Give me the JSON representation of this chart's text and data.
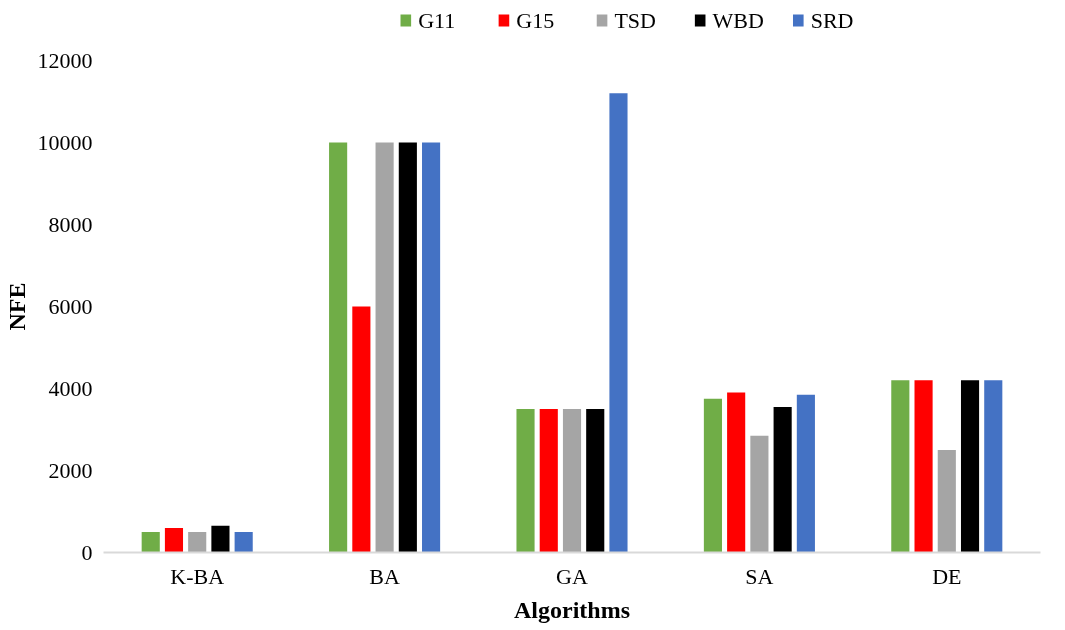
{
  "chart_data": {
    "type": "bar",
    "xlabel": "Algorithms",
    "ylabel": "NFE",
    "categories": [
      "K-BA",
      "BA",
      "GA",
      "SA",
      "DE"
    ],
    "series": [
      {
        "name": "G11",
        "color": "#70ad47",
        "values": [
          500,
          10000,
          3500,
          3750,
          4200
        ]
      },
      {
        "name": "G15",
        "color": "#ff0000",
        "values": [
          600,
          6000,
          3500,
          3900,
          4200
        ]
      },
      {
        "name": "TSD",
        "color": "#a5a5a5",
        "values": [
          500,
          10000,
          3500,
          2850,
          2500
        ]
      },
      {
        "name": "WBD",
        "color": "#000000",
        "values": [
          650,
          10000,
          3500,
          3550,
          4200
        ]
      },
      {
        "name": "SRD",
        "color": "#4472c4",
        "values": [
          500,
          10000,
          11200,
          3850,
          4200
        ]
      }
    ],
    "ylim": [
      0,
      12000
    ],
    "yticks": [
      0,
      2000,
      4000,
      6000,
      8000,
      10000,
      12000
    ],
    "grid": false,
    "legend": "top"
  }
}
